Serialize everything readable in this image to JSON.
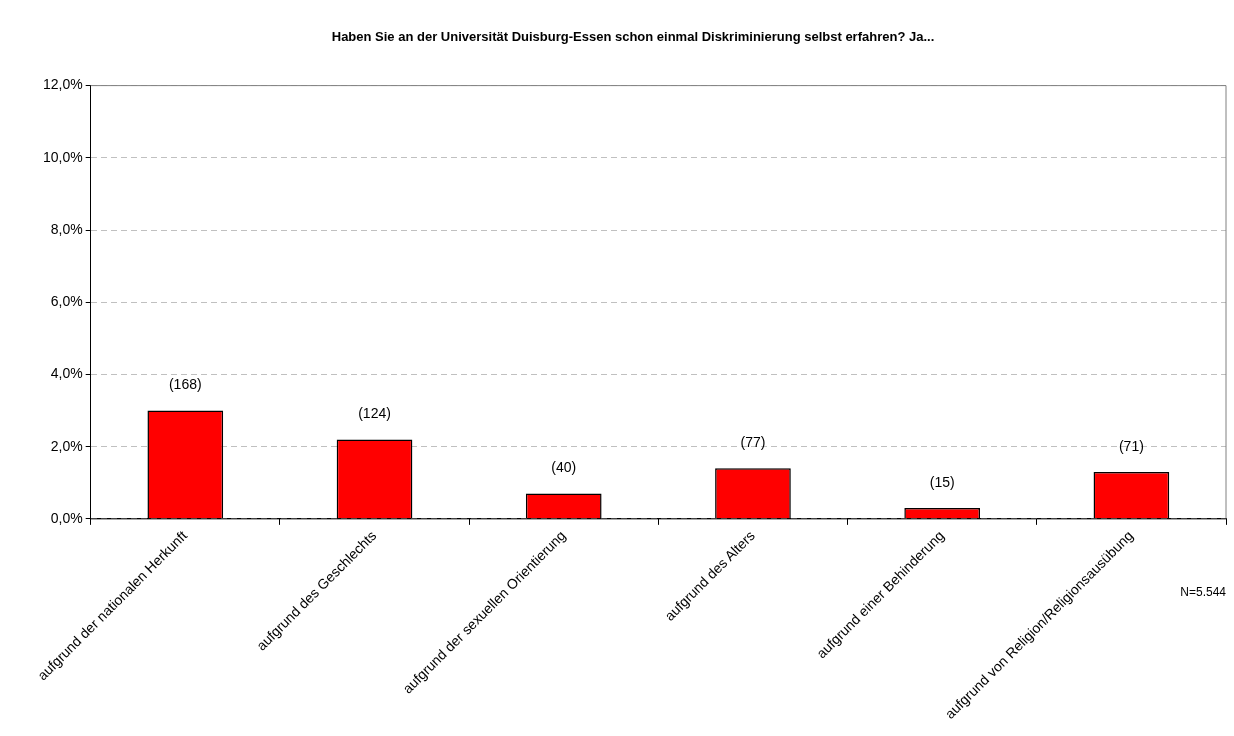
{
  "chart_data": {
    "type": "bar",
    "title": "Haben Sie an der Universität Duisburg-Essen schon einmal Diskriminierung selbst erfahren? Ja...",
    "categories": [
      "aufgrund der nationalen Herkunft",
      "aufgrund des Geschlechts",
      "aufgrund der sexuellen Orientierung",
      "aufgrund des Alters",
      "aufgrund einer Behinderung",
      "aufgrund von Religion/Religionsausübung"
    ],
    "values": [
      3.0,
      2.2,
      0.7,
      1.4,
      0.3,
      1.3
    ],
    "color": "#ff0000",
    "ylim": [
      0,
      12
    ],
    "yticks": [
      {
        "value": 0,
        "label": "0,0%"
      },
      {
        "value": 2,
        "label": "2,0%"
      },
      {
        "value": 4,
        "label": "4,0%"
      },
      {
        "value": 6,
        "label": "6,0%"
      },
      {
        "value": 8,
        "label": "8,0%"
      },
      {
        "value": 10,
        "label": "10,0%"
      },
      {
        "value": 12,
        "label": "12,0%"
      }
    ],
    "grid": "y",
    "annotations": [
      {
        "text": "(168)",
        "x": "aufgrund der nationalen Herkunft",
        "y": 3.0
      },
      {
        "text": "(124)",
        "x": "aufgrund des Geschlechts",
        "y": 2.2
      },
      {
        "text": "(40)",
        "x": "aufgrund der sexuellen Orientierung",
        "y": 0.7
      },
      {
        "text": "(77)",
        "x": "aufgrund des Alters",
        "y": 1.4
      },
      {
        "text": "(15)",
        "x": "aufgrund einer Behinderung",
        "y": 0.3
      },
      {
        "text": "(71)",
        "x": "aufgrund von Religion/Religionsausübung",
        "y": 1.3
      },
      "N=5.544"
    ]
  }
}
